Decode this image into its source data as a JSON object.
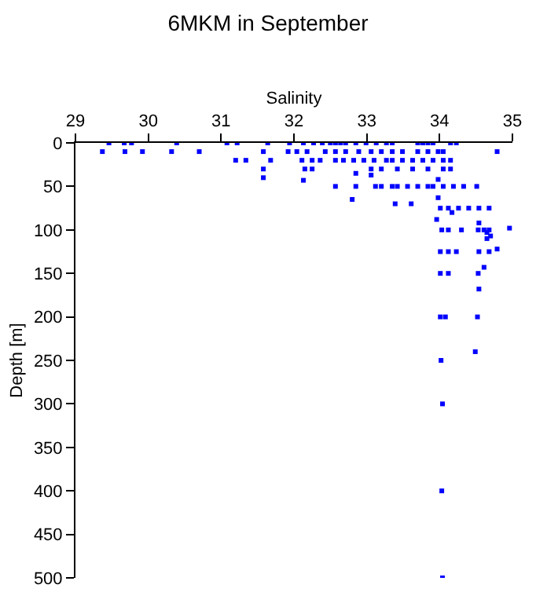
{
  "chart_data": {
    "type": "scatter",
    "title": "6MKM in September",
    "xlabel": "Salinity",
    "ylabel": "Depth [m]",
    "xlim": [
      29,
      35
    ],
    "xticks": [
      29,
      30,
      31,
      32,
      33,
      34,
      35
    ],
    "ylim": [
      500,
      0
    ],
    "yticks": [
      0,
      50,
      100,
      150,
      200,
      250,
      300,
      350,
      400,
      450,
      500
    ],
    "marker": "square",
    "series": [
      {
        "color": "#0000ff",
        "x": [
          29.46,
          29.67,
          29.77,
          30.39,
          31.08,
          31.22,
          31.64,
          31.94,
          32.13,
          32.27,
          32.39,
          32.5,
          32.57,
          32.64,
          32.71,
          32.85,
          32.99,
          33.13,
          33.27,
          33.35,
          33.7,
          33.77,
          33.84,
          33.91,
          34.15,
          34.23,
          29.37,
          29.68,
          29.92,
          30.32,
          30.7,
          31.58,
          31.92,
          32.04,
          32.18,
          32.43,
          32.57,
          32.71,
          32.89,
          33.06,
          33.2,
          33.35,
          33.49,
          33.7,
          33.84,
          33.98,
          34.05,
          34.79,
          31.2,
          31.34,
          31.68,
          32.11,
          32.25,
          32.36,
          32.57,
          32.68,
          32.82,
          32.96,
          33.1,
          33.27,
          33.35,
          33.49,
          33.63,
          33.77,
          33.91,
          34.05,
          34.15,
          31.58,
          32.15,
          32.25,
          33.06,
          33.2,
          33.42,
          33.63,
          33.84,
          34.05,
          34.15,
          32.85,
          33.06,
          31.58,
          32.13,
          33.98,
          32.57,
          32.85,
          33.12,
          33.2,
          33.35,
          33.42,
          33.56,
          33.7,
          33.84,
          33.91,
          34.05,
          34.19,
          34.33,
          34.51,
          33.98,
          32.8,
          33.39,
          33.61,
          34.01,
          34.12,
          34.26,
          34.4,
          34.54,
          34.68,
          34.17,
          33.96,
          34.54,
          34.96,
          34.03,
          34.12,
          34.3,
          34.53,
          34.61,
          34.68,
          34.65,
          34.7,
          34.65,
          34.01,
          34.12,
          34.23,
          34.54,
          34.68,
          34.79,
          34.61,
          34.01,
          34.12,
          34.53,
          34.54,
          34.01,
          34.08,
          34.52,
          34.49,
          34.02,
          34.04,
          34.03,
          34.04
        ],
        "values": [
          0,
          0,
          0,
          0,
          0,
          0,
          0,
          0,
          0,
          0,
          0,
          0,
          0,
          0,
          0,
          0,
          0,
          0,
          0,
          0,
          0,
          0,
          0,
          0,
          0,
          0,
          10,
          10,
          10,
          10,
          10,
          10,
          10,
          10,
          10,
          10,
          10,
          10,
          10,
          10,
          10,
          10,
          10,
          10,
          10,
          10,
          10,
          10,
          20,
          20,
          20,
          20,
          20,
          20,
          20,
          20,
          20,
          20,
          20,
          20,
          20,
          20,
          20,
          20,
          20,
          20,
          20,
          30,
          30,
          30,
          30,
          30,
          30,
          30,
          30,
          30,
          30,
          35,
          37,
          40,
          43,
          42,
          50,
          50,
          50,
          50,
          50,
          50,
          50,
          50,
          50,
          50,
          50,
          50,
          50,
          50,
          63,
          65,
          70,
          70,
          75,
          75,
          75,
          75,
          75,
          75,
          80,
          88,
          92,
          98,
          100,
          100,
          100,
          100,
          100,
          100,
          103,
          107,
          110,
          125,
          125,
          125,
          125,
          125,
          122,
          143,
          150,
          150,
          150,
          168,
          200,
          200,
          200,
          240,
          250,
          300,
          400,
          500
        ]
      }
    ]
  }
}
